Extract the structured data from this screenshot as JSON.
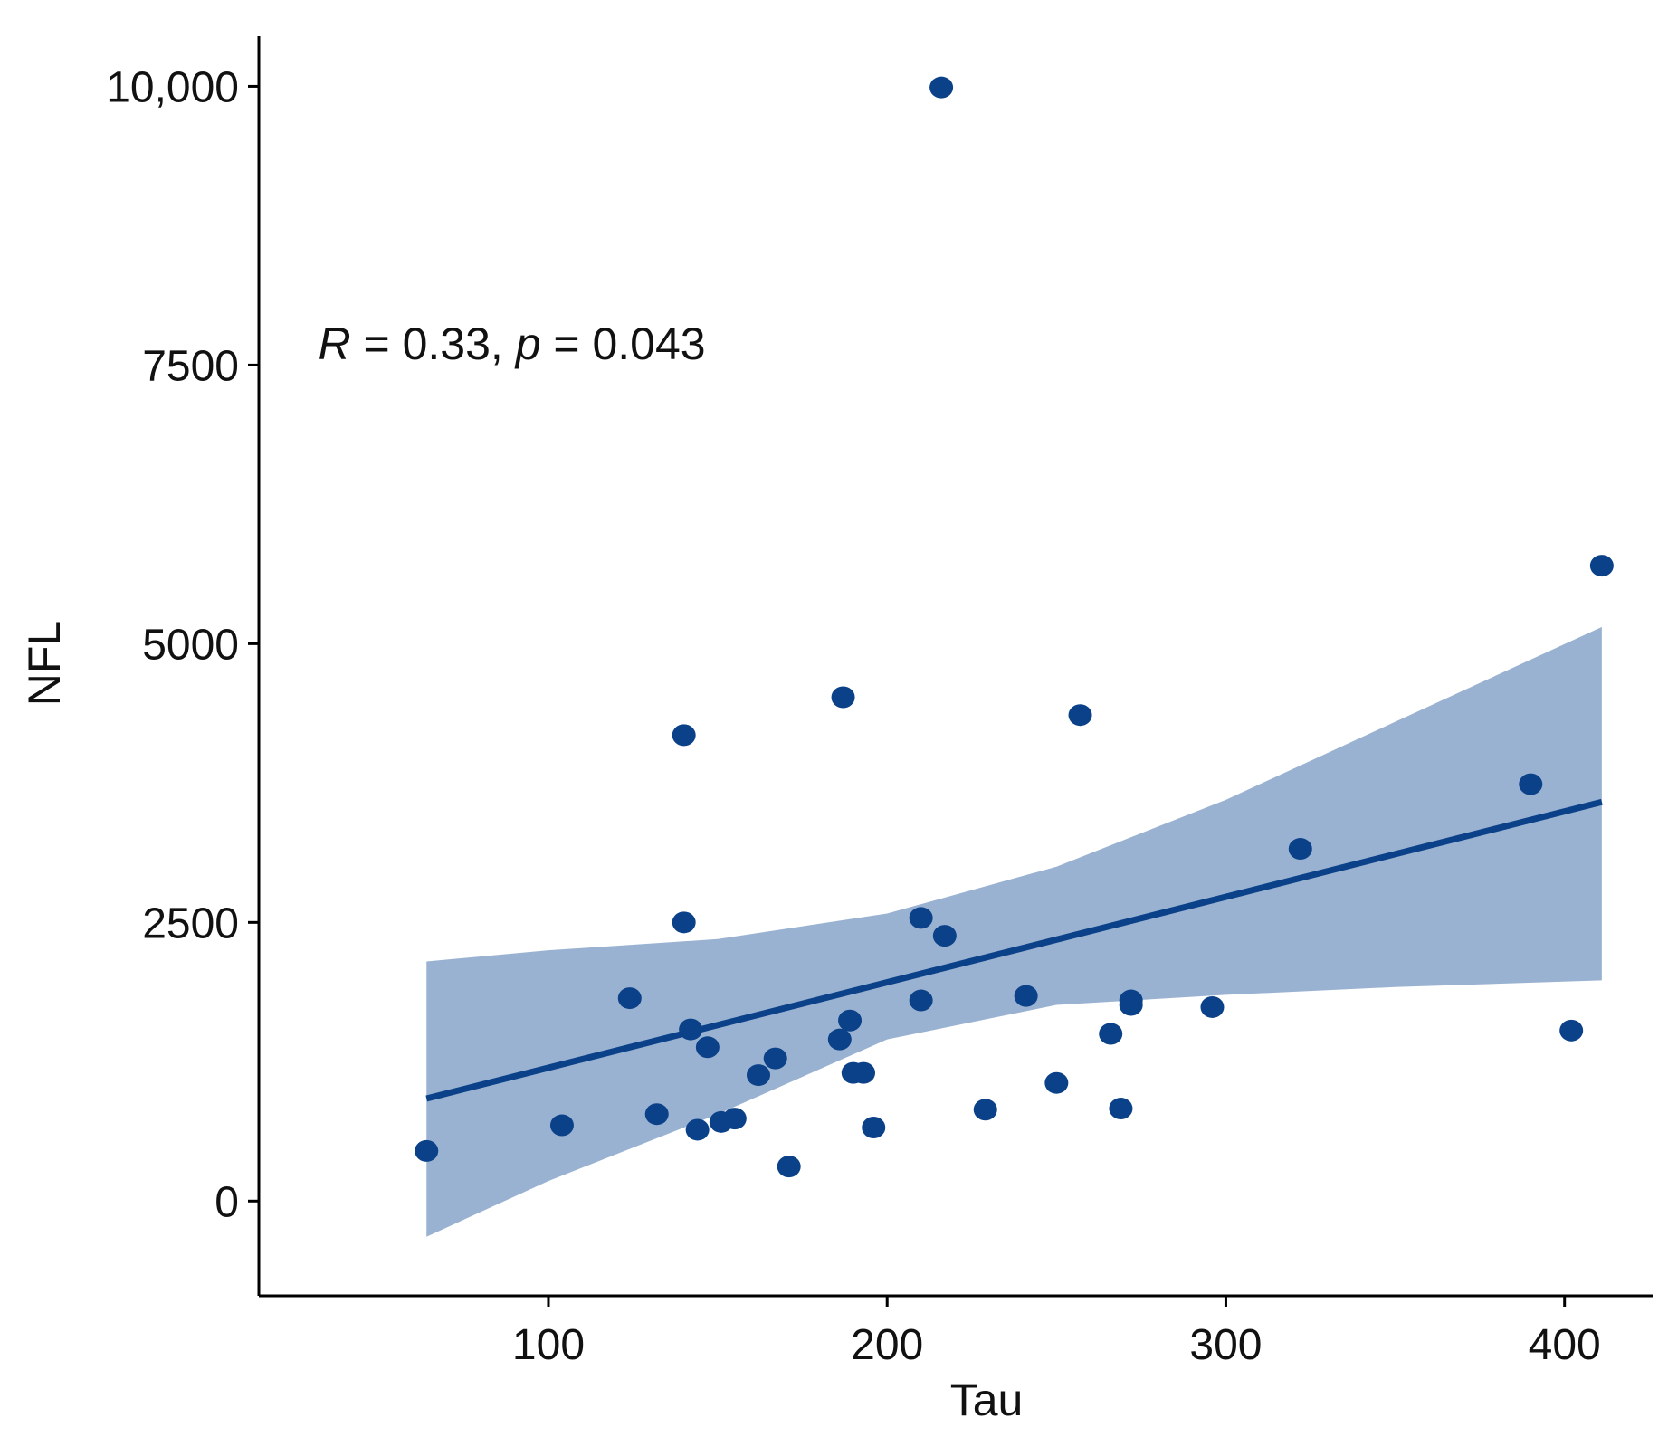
{
  "chart_data": {
    "type": "scatter",
    "xlabel": "Tau",
    "ylabel": "NFL",
    "xlim": [
      14.5,
      426
    ],
    "ylim": [
      -850,
      10450
    ],
    "x_ticks": [
      {
        "value": 100,
        "label": "100"
      },
      {
        "value": 200,
        "label": "200"
      },
      {
        "value": 300,
        "label": "300"
      },
      {
        "value": 400,
        "label": "400"
      }
    ],
    "y_ticks": [
      {
        "value": 0,
        "label": "0"
      },
      {
        "value": 2500,
        "label": "2500"
      },
      {
        "value": 5000,
        "label": "5000"
      },
      {
        "value": 7500,
        "label": "7500"
      },
      {
        "value": 10000,
        "label": "10,000"
      }
    ],
    "grid": false,
    "annotation": {
      "r_symbol": "R",
      "r_text": " = 0.33",
      "sep": ", ",
      "p_symbol": "p",
      "p_text": " = 0.043",
      "anchor_x": 32,
      "anchor_y": 7550
    },
    "colors": {
      "points": "#0b4188",
      "fit_line": "#0b4188",
      "confidence_band": "#9ab2d2",
      "axis": "#000000"
    },
    "series": [
      {
        "kind": "points",
        "points": [
          [
            64,
            450
          ],
          [
            104,
            680
          ],
          [
            124,
            1820
          ],
          [
            132,
            780
          ],
          [
            140,
            4180
          ],
          [
            140,
            2500
          ],
          [
            142,
            1540
          ],
          [
            144,
            640
          ],
          [
            147,
            1380
          ],
          [
            151,
            710
          ],
          [
            155,
            740
          ],
          [
            162,
            1130
          ],
          [
            167,
            1280
          ],
          [
            171,
            310
          ],
          [
            186,
            1450
          ],
          [
            187,
            4520
          ],
          [
            189,
            1620
          ],
          [
            190,
            1150
          ],
          [
            193,
            1150
          ],
          [
            196,
            660
          ],
          [
            210,
            1800
          ],
          [
            210,
            2540
          ],
          [
            216,
            9990
          ],
          [
            217,
            2380
          ],
          [
            229,
            820
          ],
          [
            241,
            1840
          ],
          [
            250,
            1060
          ],
          [
            257,
            4360
          ],
          [
            266,
            1500
          ],
          [
            269,
            830
          ],
          [
            272,
            1800
          ],
          [
            272,
            1760
          ],
          [
            296,
            1740
          ],
          [
            322,
            3160
          ],
          [
            390,
            3740
          ],
          [
            402,
            1530
          ],
          [
            411,
            5700
          ]
        ]
      },
      {
        "kind": "fit",
        "x": [
          64,
          411
        ],
        "y": [
          920,
          3580
        ]
      },
      {
        "kind": "band",
        "x": [
          64,
          100,
          150,
          200,
          250,
          300,
          350,
          411
        ],
        "upper": [
          2150,
          2250,
          2350,
          2580,
          3000,
          3600,
          4300,
          5150
        ],
        "lower": [
          -320,
          180,
          780,
          1450,
          1760,
          1850,
          1920,
          1980
        ]
      }
    ]
  }
}
